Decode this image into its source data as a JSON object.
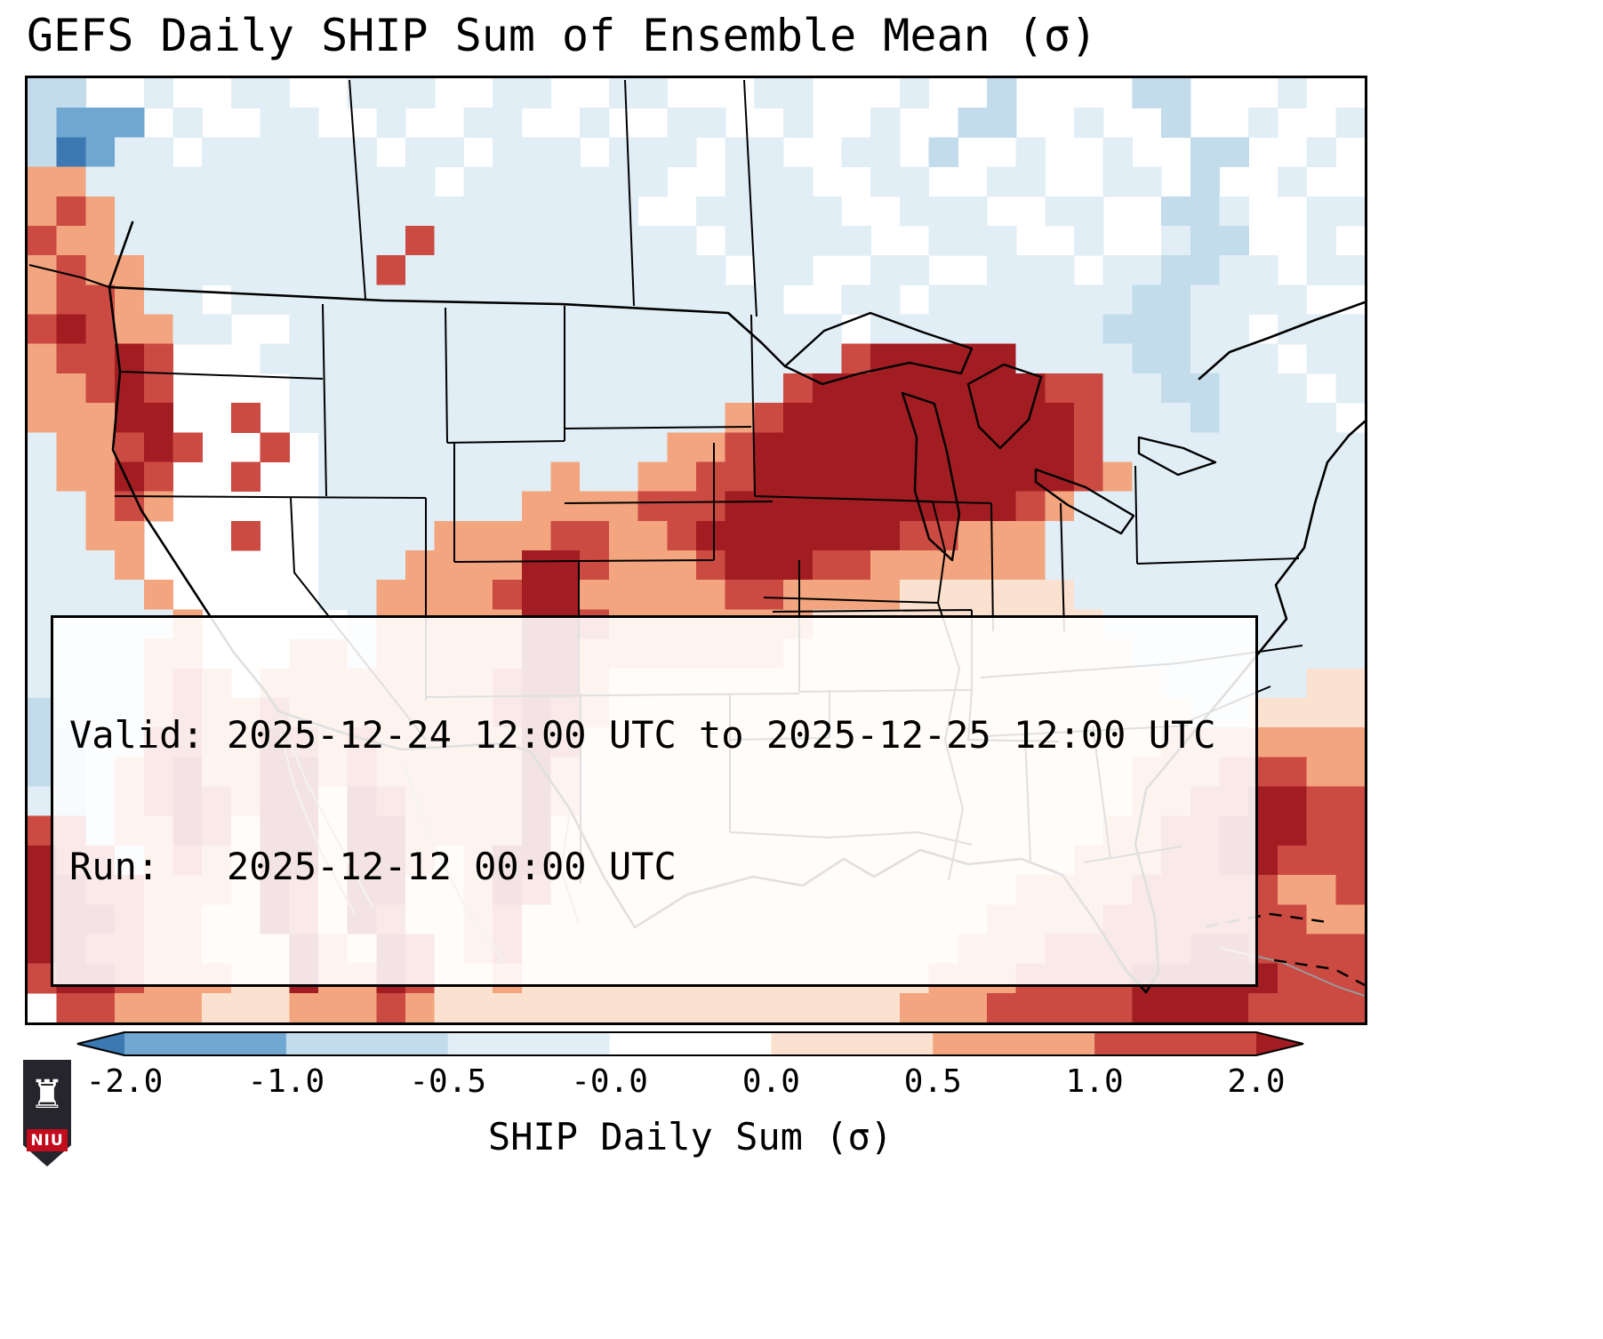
{
  "title": "GEFS Daily SHIP Sum of Ensemble Mean (σ)",
  "annotation": {
    "line1": "Valid: 2025-12-24 12:00 UTC to 2025-12-25 12:00 UTC",
    "line2": "Run:   2025-12-12 00:00 UTC"
  },
  "colorbar": {
    "label": "SHIP Daily Sum (σ)",
    "ticks": [
      "-2.0",
      "-1.0",
      "-0.5",
      "-0.0",
      "0.0",
      "0.5",
      "1.0",
      "2.0"
    ],
    "segments": [
      "#6fa7d1",
      "#c3dcec",
      "#e2eef6",
      "#ffffff",
      "#fbe1cf",
      "#f2a57e",
      "#cb4a42"
    ],
    "under_arrow_color": "#3c78b2",
    "over_arrow_color": "#a11d22"
  },
  "logo": {
    "text": "NIU",
    "castle_icon": "♜",
    "shield_color": "#26252b",
    "banner_color": "#c20c1e"
  },
  "chart_data": {
    "type": "heatmap",
    "title": "GEFS Daily SHIP Sum of Ensemble Mean (σ)",
    "variable": "SHIP Daily Sum (σ)",
    "valid": "2025-12-24 12:00 UTC to 2025-12-25 12:00 UTC",
    "run": "2025-12-12 00:00 UTC",
    "region": "Contiguous United States with surrounding Canada, Mexico, Gulf of Mexico, Caribbean and adjacent oceans",
    "value_levels": [
      -2.0,
      -1.0,
      -0.5,
      -0.0,
      0.0,
      0.5,
      1.0,
      2.0
    ],
    "colormap": "diverging blue-white-red with under/over extension arrows",
    "legend_position": "horizontal colorbar below map",
    "summary": "Strong positive SHIP anomalies (>2σ, dark red) over the Midwest and Ohio Valley (IL, IN, OH, MI, KY, MO) extending southwest through Oklahoma to a second >2σ band over west Texas / eastern New Mexico; weak negative anomalies (pale blue) over the northern Plains, Rockies and Northeast; positive anomalies along the California coast, Mexico's mountain ranges, the Gulf Coast states, Florida and the subtropical western Atlantic / Caribbean.",
    "grid": {
      "cols": 46,
      "rows": 32,
      "encoding": "one character per grid cell, row strings ordered north to south, columns west to east",
      "palette": {
        "a": "#3c78b2",
        "b": "#6fa7d1",
        "c": "#c3dcec",
        "d": "#e2eef6",
        "w": "#ffffff",
        "p": "#fbe1cf",
        "s": "#f2a57e",
        "r": "#cb4a42",
        "R": "#a11d22"
      },
      "palette_values": {
        "a": "< -2.0",
        "b": "-2.0 to -1.0",
        "c": "-1.0 to -0.5",
        "d": "-0.5 to -0.0",
        "w": "0.0",
        "p": "0.0 to 0.5",
        "s": "0.5 to 1.0",
        "r": "1.0 to 2.0",
        "R": "> 2.0"
      },
      "rows_encoded": [
        "ccwwdwwddwwdddwwddwwddwwwddwwwdwwcwwwwccwwwdww",
        "cbbbwdwwddwwdwwddwwdwwddwwdwwdwwccwwdwwcwwdwwd",
        "cabddwddddddwddwdddwdddwddwwddwcwwdwwdwwccwwdw",
        "ssddddddddddddwdddddddwwdddwwddwwddwwddwcwwdww",
        "srsddddddddddddddddddwwdddddwwdddwwddwwccdwwdd",
        "rssddddddddddrdddddddddwdddddwwdddwwdwwdccwwdw",
        "srssddddddddrdddddddddddwddwwddwwdddwddccddwdd",
        "srrsddwdddddddddddddddddddwwddwdddddddccddddww",
        "rRrssddwwdddddddddddddddddddwddddddddcccddwddd",
        "srrRrwwwddddddddddddddddddddrRRRRRddddccdddwdd",
        "ssrRrwwwwdddddddddddddddddrRRRRRRRRrrddccdddwd",
        "sssRRwwrwdddddddddddddddsrRRRRRRRRRRrdddcddddw",
        "dssrRrwwrwddddddddddddssrRRRRRRRRRRRrddddddddd",
        "dssRrwwrwwddddddddsddssrrRRRRRRRRRRRrsdddddddd",
        "ddsrswwwwwdddddddssssrrrRRRRRRRRRRrsdddddddddd",
        "ddsswwwrwwddddssssrrssrRRRRRRRrrsssddddddddddd",
        "dddswwwwwwdddssssRRrsssrRRRrrssssssddddddddddd",
        "ddddswwwwwddssssrRRsssssrrssssppppppdddddddddd",
        "dddddswwwwwdsssssRRrsssssssppppppppppddddddddd",
        "ddddsswwwssdsssssRRsssssssppppppppppppdddddddd",
        "ddddsrswssssssssrRRspppppppppppppppppppdddddpp",
        "cdddsrssrsssssssrRrsppppppppppppppppppppddpppp",
        "ccddrrssRrsrsssssRrppppppppppppppppppppsssssss",
        "ccdsrRssRRsrsssssRspppppppppppppppppppsssrrrss",
        "dcdsrRrsRRpRrssssRspppppppppppppppppppssrrRRrr",
        "rrdssRrpRRpRRssssRpppppppppppppppppppssrrRRRrr",
        "RrrdsrspRRpRRspsRRppppppppppppppppppsssrrRRrrr",
        "RRrrssspRrpRRppsRrppppppppppppppppssssrrrrrssr",
        "RRRrssppRrpRrppsrppppppppppppppppssssrrrrrrrss",
        "RRrrsspppRspRrpsrpppppppppppppppsssrrrrrRRrrrr",
        "rRRrsssppRssRrppsppppppppppppppsssrrrrRRRRRrrr",
        "wrrssspppsssrsppppppppppppppppsssrrrrrRRRRrrrr"
      ]
    }
  }
}
